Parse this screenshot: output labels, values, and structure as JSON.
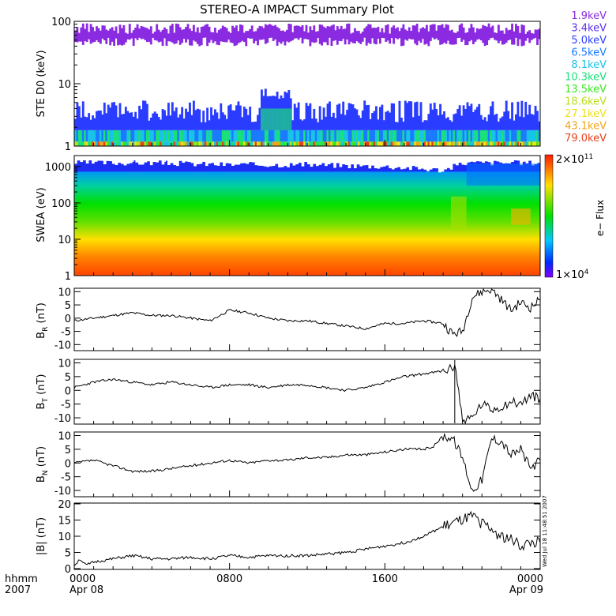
{
  "title": "STEREO-A IMPACT Summary Plot",
  "footer": {
    "hhmm": "hhmm",
    "year": "2007",
    "time_ticks": [
      "0000",
      "0800",
      "1600",
      "0000"
    ],
    "date_ticks": [
      "Apr 08",
      "",
      "",
      "Apr 09"
    ],
    "stamp": "Wed Jul 18 11:48:51 2007"
  },
  "colors": {
    "ste_channels": [
      "#8a2be2",
      "#5b2df0",
      "#2a3cff",
      "#1a7bff",
      "#19c3e8",
      "#19e07a",
      "#39e81f",
      "#b8e01a",
      "#f0e01a",
      "#f0a41a",
      "#e8401a"
    ],
    "trace": "#000000"
  },
  "chart_data": [
    {
      "panel": "ste",
      "type": "line",
      "ylabel": "STE D0 (keV)",
      "yscale": "log",
      "ylim": [
        1,
        100
      ],
      "yticks": [
        "1",
        "10",
        "100"
      ],
      "x": [
        "0000",
        "0800",
        "1600",
        "0000"
      ],
      "series": [
        {
          "name": "1.9keV",
          "level": "50-90"
        },
        {
          "name": "3.4keV",
          "level": "2-6"
        },
        {
          "name": "5.0keV",
          "level": "1.5-3"
        },
        {
          "name": "6.5keV",
          "level": "1-2"
        },
        {
          "name": "8.1keV",
          "level": "1-2"
        },
        {
          "name": "10.3keV",
          "level": "1-2"
        },
        {
          "name": "13.5keV",
          "level": "1-1.5"
        },
        {
          "name": "18.6keV",
          "level": "1-1.5"
        },
        {
          "name": "27.1keV",
          "level": "1-1.2"
        },
        {
          "name": "43.1keV",
          "level": "1-1.2"
        },
        {
          "name": "79.0keV",
          "level": "1-1.2"
        }
      ]
    },
    {
      "panel": "swea",
      "type": "heatmap",
      "ylabel": "SWEA (eV)",
      "yscale": "log",
      "ylim": [
        1,
        2000
      ],
      "yticks": [
        "1",
        "10",
        "100",
        "1000"
      ],
      "colorbar": {
        "label": "e− Flux",
        "max_base": "2×10",
        "max_exp": "11",
        "min_base": "1×10",
        "min_exp": "4"
      },
      "hours": [
        0,
        4,
        8,
        12,
        16,
        19,
        20,
        24
      ],
      "boundary_ev_log10": [
        3.1,
        3.1,
        3.05,
        3.05,
        3.0,
        2.9,
        3.1,
        3.1
      ]
    },
    {
      "panel": "br",
      "type": "line",
      "ylabel_main": "B",
      "ylabel_sub": "R",
      "ylabel_tail": " (nT)",
      "ylim": [
        -12,
        11
      ],
      "yticks": [
        "10",
        "5",
        "0",
        "-5",
        "-10"
      ],
      "x": [
        0,
        1,
        2,
        3,
        4,
        5,
        6,
        7,
        8,
        9,
        10,
        11,
        12,
        13,
        14,
        15,
        16,
        17,
        18,
        19,
        19.5,
        20,
        20.5,
        21,
        21.5,
        22,
        22.5,
        23,
        23.5,
        24
      ],
      "values": [
        -1,
        0,
        1,
        2,
        1,
        1,
        0,
        -1,
        3,
        2,
        0,
        -1,
        -1,
        -2,
        -3,
        -4,
        -2,
        -2,
        -1,
        -2,
        -6,
        -5,
        8,
        10,
        11,
        7,
        3,
        6,
        4,
        7
      ]
    },
    {
      "panel": "bt",
      "type": "line",
      "ylabel_main": "B",
      "ylabel_sub": "T",
      "ylabel_tail": " (nT)",
      "ylim": [
        -12,
        11
      ],
      "yticks": [
        "10",
        "5",
        "0",
        "-5",
        "-10"
      ],
      "x": [
        0,
        1,
        2,
        3,
        4,
        5,
        6,
        7,
        8,
        9,
        10,
        11,
        12,
        13,
        14,
        15,
        16,
        17,
        18,
        19,
        19.5,
        19.6,
        20,
        20.5,
        21,
        21.5,
        22,
        22.5,
        23,
        23.5,
        24
      ],
      "values": [
        1,
        3,
        4,
        3,
        2,
        3,
        2,
        1,
        2,
        2,
        1,
        2,
        2,
        1,
        0,
        1,
        3,
        5,
        6,
        7,
        8,
        10,
        -11,
        -10,
        -5,
        -7,
        -6,
        -4,
        -5,
        -2,
        -3
      ]
    },
    {
      "panel": "bn",
      "type": "line",
      "ylabel_main": "B",
      "ylabel_sub": "N",
      "ylabel_tail": " (nT)",
      "ylim": [
        -12,
        11
      ],
      "yticks": [
        "10",
        "5",
        "0",
        "-5",
        "-10"
      ],
      "x": [
        0,
        1,
        2,
        3,
        4,
        5,
        6,
        7,
        8,
        9,
        10,
        11,
        12,
        13,
        14,
        15,
        16,
        17,
        18,
        18.5,
        19,
        19.5,
        20,
        20.5,
        21,
        21.5,
        22,
        22.5,
        23,
        23.5,
        24
      ],
      "values": [
        0,
        1,
        -1,
        -3,
        -3,
        -2,
        -1,
        0,
        1,
        0,
        1,
        1,
        2,
        2,
        3,
        3,
        4,
        5,
        5,
        6,
        10,
        9,
        2,
        -10,
        -6,
        9,
        8,
        3,
        5,
        -2,
        1
      ]
    },
    {
      "panel": "bmag",
      "type": "line",
      "ylabel": "|B| (nT)",
      "ylim": [
        0,
        20
      ],
      "yticks": [
        "20",
        "15",
        "10",
        "5",
        "0"
      ],
      "x": [
        0,
        0.3,
        0.6,
        1,
        2,
        3,
        4,
        5,
        6,
        7,
        8,
        9,
        10,
        11,
        12,
        13,
        14,
        15,
        16,
        17,
        18,
        19,
        19.5,
        20,
        20.5,
        21,
        21.5,
        22,
        22.5,
        23,
        23.5,
        24
      ],
      "values": [
        1,
        3,
        1,
        2,
        3,
        4,
        3,
        3,
        3.5,
        3,
        4,
        3.5,
        4,
        4,
        4,
        4.5,
        5,
        6,
        7,
        8,
        10,
        13,
        14,
        15,
        16,
        14,
        12,
        10,
        9,
        7,
        8,
        8
      ]
    }
  ]
}
